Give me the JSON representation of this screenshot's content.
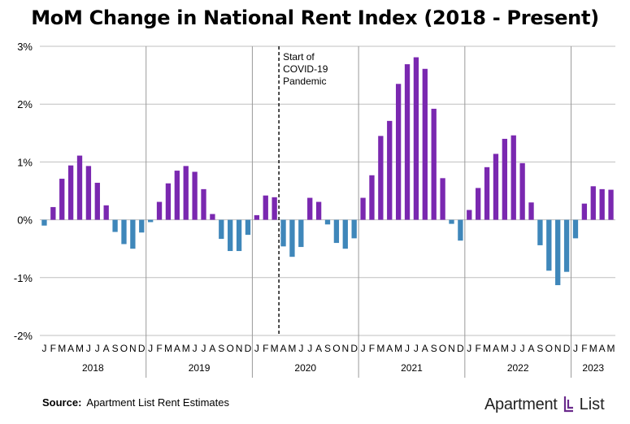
{
  "title": "MoM Change in National Rent Index (2018 - Present)",
  "source": {
    "label": "Source:",
    "text": "Apartment List Rent Estimates"
  },
  "logo": {
    "name_part1": "Apartment",
    "name_part2": "List",
    "icon": "apartment-list-logo-icon"
  },
  "colors": {
    "positive": "#7a28b0",
    "negative": "#3f87ba",
    "grid": "#bfbfbf",
    "divider": "#9a9a9a",
    "annotation_line": "#000000"
  },
  "chart_data": {
    "type": "bar",
    "title": "MoM Change in National Rent Index (2018 - Present)",
    "xlabel": "",
    "ylabel": "",
    "ylim": [
      -2,
      3
    ],
    "yticks": [
      {
        "value": 3,
        "label": "3%"
      },
      {
        "value": 2,
        "label": "2%"
      },
      {
        "value": 1,
        "label": "1%"
      },
      {
        "value": 0,
        "label": "0%"
      },
      {
        "value": -1,
        "label": "-1%"
      },
      {
        "value": -2,
        "label": "-2%"
      }
    ],
    "grid": "horizontal",
    "legend": "none",
    "years": [
      {
        "label": "2018",
        "months": [
          "J",
          "F",
          "M",
          "A",
          "M",
          "J",
          "J",
          "A",
          "S",
          "O",
          "N",
          "D"
        ],
        "values": [
          -0.1,
          0.22,
          0.71,
          0.94,
          1.11,
          0.93,
          0.64,
          0.25,
          -0.21,
          -0.42,
          -0.5,
          -0.22
        ]
      },
      {
        "label": "2019",
        "months": [
          "J",
          "F",
          "M",
          "A",
          "M",
          "J",
          "J",
          "A",
          "S",
          "O",
          "N",
          "D"
        ],
        "values": [
          -0.04,
          0.31,
          0.63,
          0.85,
          0.93,
          0.83,
          0.53,
          0.1,
          -0.33,
          -0.54,
          -0.54,
          -0.26
        ]
      },
      {
        "label": "2020",
        "months": [
          "J",
          "F",
          "M",
          "A",
          "M",
          "J",
          "J",
          "A",
          "S",
          "O",
          "N",
          "D"
        ],
        "values": [
          0.08,
          0.42,
          0.39,
          -0.46,
          -0.64,
          -0.47,
          0.38,
          0.31,
          -0.08,
          -0.4,
          -0.5,
          -0.32
        ]
      },
      {
        "label": "2021",
        "months": [
          "J",
          "F",
          "M",
          "A",
          "M",
          "J",
          "J",
          "A",
          "S",
          "O",
          "N",
          "D"
        ],
        "values": [
          0.38,
          0.77,
          1.45,
          1.71,
          2.35,
          2.69,
          2.81,
          2.61,
          1.92,
          0.72,
          -0.07,
          -0.36
        ]
      },
      {
        "label": "2022",
        "months": [
          "J",
          "F",
          "M",
          "A",
          "M",
          "J",
          "J",
          "A",
          "S",
          "O",
          "N",
          "D"
        ],
        "values": [
          0.17,
          0.55,
          0.91,
          1.14,
          1.4,
          1.46,
          0.98,
          0.3,
          -0.44,
          -0.88,
          -1.13,
          -0.9
        ]
      },
      {
        "label": "2023",
        "months": [
          "J",
          "F",
          "M",
          "A",
          "M"
        ],
        "values": [
          -0.32,
          0.28,
          0.58,
          0.53,
          0.52
        ]
      }
    ],
    "annotations": [
      {
        "lines": [
          "Start of",
          "COVID-19",
          "Pandemic"
        ],
        "year": "2020",
        "between_months": [
          "M",
          "A"
        ]
      }
    ]
  }
}
